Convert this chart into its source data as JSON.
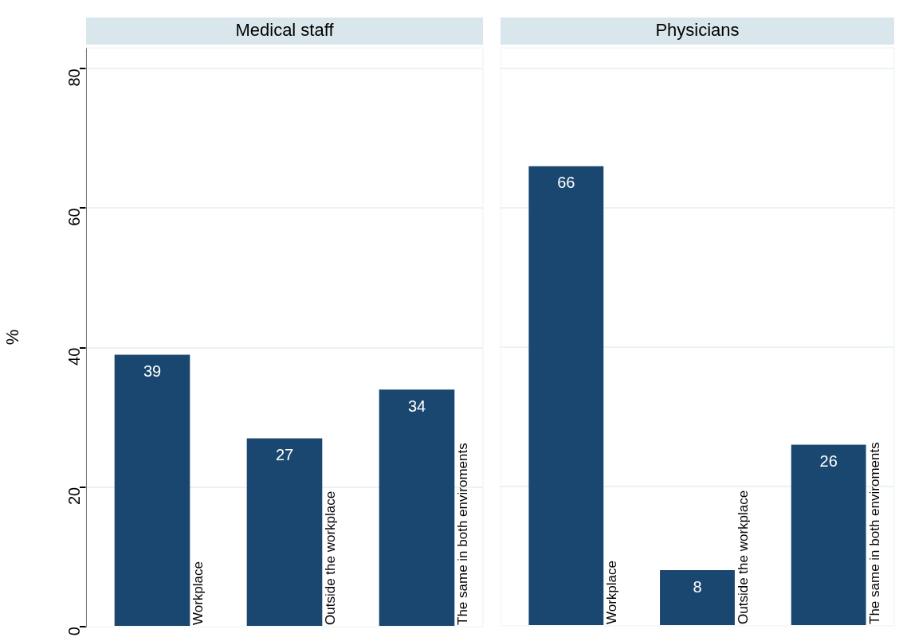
{
  "chart_data": [
    {
      "type": "bar",
      "title": "Medical staff",
      "ylabel": "%",
      "categories": [
        "Workplace",
        "Outside the workplace",
        "The same in both enviroments"
      ],
      "values": [
        39,
        27,
        34
      ],
      "color": "#1a476f",
      "ylim": [
        0,
        83
      ],
      "yticks": [
        0,
        20,
        40,
        60,
        80
      ],
      "grid": "y",
      "data_labels": true
    },
    {
      "type": "bar",
      "title": "Physicians",
      "categories": [
        "Workplace",
        "Outside the workplace",
        "The same in both enviroments"
      ],
      "values": [
        66,
        8,
        26
      ],
      "color": "#1a476f",
      "ylim": [
        0,
        83
      ],
      "yticks": [
        0,
        20,
        40,
        60,
        80
      ],
      "grid": "y",
      "data_labels": true,
      "tick_labels": "x"
    }
  ]
}
